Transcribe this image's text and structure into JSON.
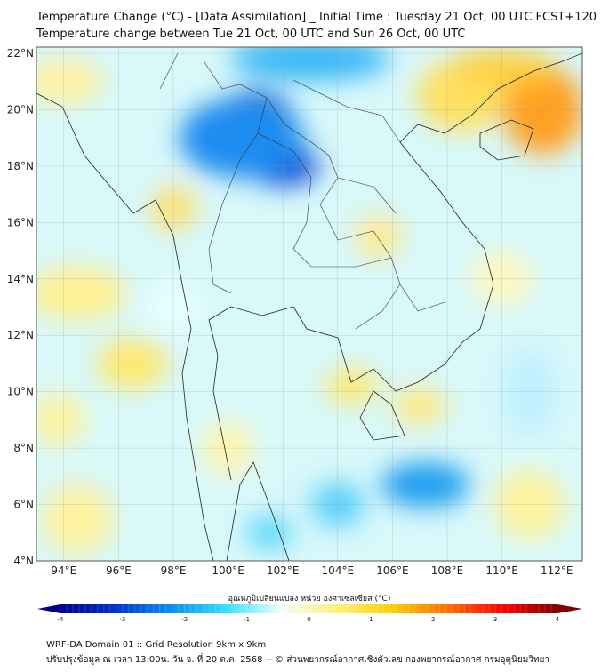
{
  "title_line1": "Temperature Change (°C) - [Data Assimilation] _ Initial Time : Tuesday 21 Oct, 00 UTC FCST+120",
  "title_line2": "Temperature change between Tue 21 Oct, 00 UTC and Sun 26 Oct, 00 UTC",
  "map": {
    "lon_range": [
      93,
      112.9
    ],
    "lat_range": [
      4,
      22.2
    ],
    "lon_ticks": [
      "94°E",
      "96°E",
      "98°E",
      "100°E",
      "102°E",
      "104°E",
      "106°E",
      "108°E",
      "110°E",
      "112°E"
    ],
    "lat_ticks": [
      "4°N",
      "6°N",
      "8°N",
      "10°N",
      "12°N",
      "14°N",
      "16°N",
      "18°N",
      "20°N",
      "22°N"
    ]
  },
  "colorbar": {
    "label": "อุณหภูมิเปลี่ยนแปลง หน่วย องศาเซลเซียส (°C)",
    "ticks": [
      "-4",
      "-3",
      "-2",
      "-1",
      "0",
      "1",
      "2",
      "3",
      "4"
    ],
    "range": [
      -4,
      4
    ],
    "colors": [
      "#00008b",
      "#0033cc",
      "#0a8ff0",
      "#33e0ff",
      "#f0ffff",
      "#fff080",
      "#ffd000",
      "#ff7000",
      "#ff0000",
      "#800000"
    ]
  },
  "footer_line1": "WRF-DA Domain 01 :: Grid Resolution 9km x 9km",
  "footer_line2": "ปรับปรุงข้อมูล ณ เวลา 13:00น. วัน จ. ที่ 20 ต.ค. 2568 -- © ส่วนพยากรณ์อากาศเชิงตัวเลข กองพยากรณ์อากาศ กรมอุตุนิยมวิทยา"
}
